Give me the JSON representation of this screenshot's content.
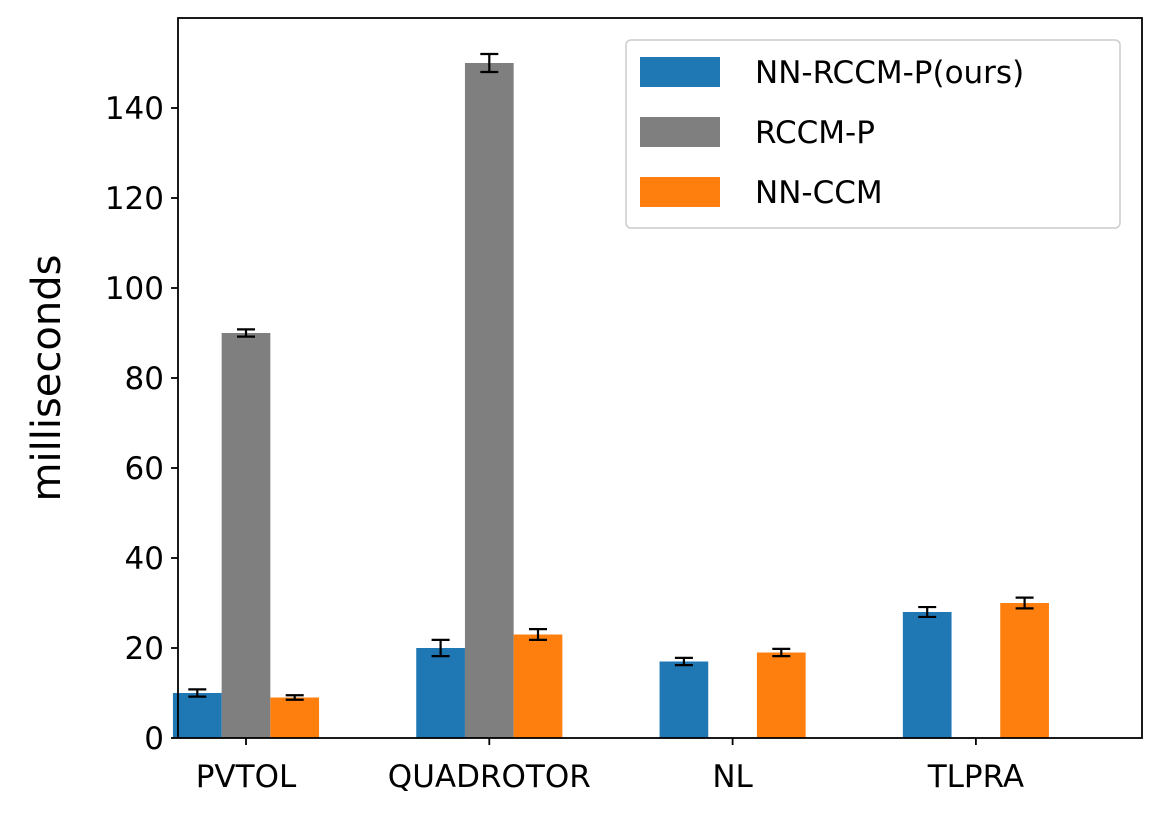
{
  "chart_data": {
    "type": "bar",
    "title": "",
    "xlabel": "",
    "ylabel": "milliseconds",
    "categories": [
      "PVTOL",
      "QUADROTOR",
      "NL",
      "TLPRA"
    ],
    "ylim": [
      0,
      160
    ],
    "yticks": [
      0,
      20,
      40,
      60,
      80,
      100,
      120,
      140
    ],
    "grid": false,
    "legend_position": "top-right",
    "series": [
      {
        "name": "NN-RCCM-P(ours)",
        "color": "#1f77b4",
        "values": [
          10,
          20,
          17,
          28
        ],
        "errors": [
          0.8,
          1.8,
          0.8,
          1.1
        ]
      },
      {
        "name": "RCCM-P",
        "color": "#7f7f7f",
        "values": [
          90,
          150,
          0,
          0
        ],
        "errors": [
          0.8,
          2.0,
          0,
          0
        ]
      },
      {
        "name": "NN-CCM",
        "color": "#ff7f0e",
        "values": [
          9,
          23,
          19,
          30
        ],
        "errors": [
          0.5,
          1.2,
          0.8,
          1.2
        ]
      }
    ]
  }
}
